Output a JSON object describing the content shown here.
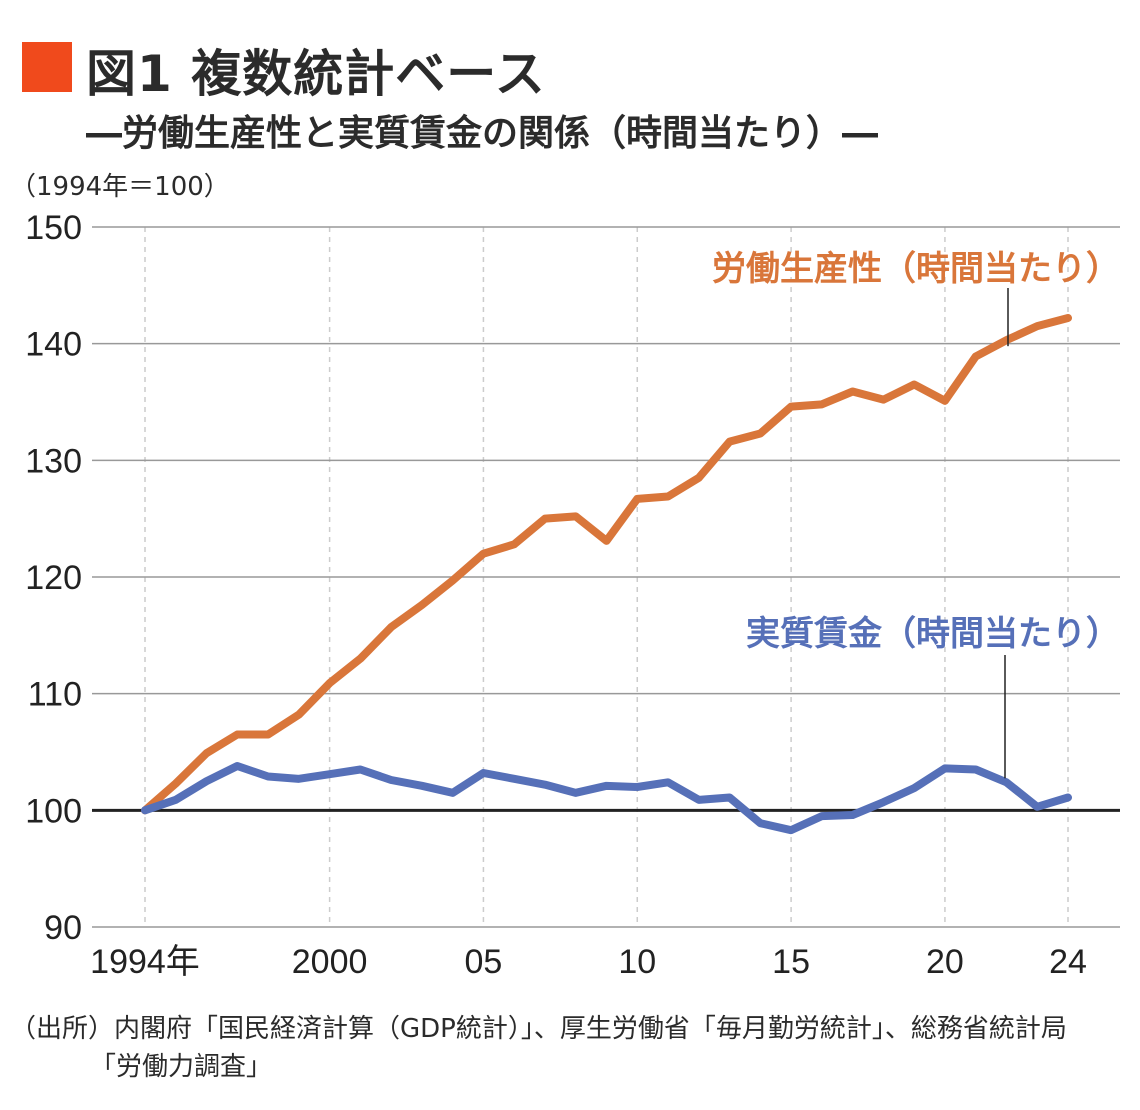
{
  "header": {
    "title": "図1 複数統計ベース",
    "subtitle": "―労働生産性と実質賃金の関係（時間当たり）―",
    "unit": "（1994年＝100）",
    "accent_color": "#f04a1c"
  },
  "source": {
    "line1": "（出所）内閣府「国民経済計算（GDP統計）」、厚生労働省「毎月勤労統計」、総務省統計局",
    "line2": "「労働力調査」"
  },
  "chart_data": {
    "type": "line",
    "title": "図1 複数統計ベース",
    "ylabel": "（1994年＝100）",
    "ylim": [
      90,
      150
    ],
    "yticks": [
      90,
      100,
      110,
      120,
      130,
      140,
      150
    ],
    "xlim": [
      1994,
      2024
    ],
    "xtick_values": [
      1994,
      2000,
      2005,
      2010,
      2015,
      2020,
      2024
    ],
    "xtick_labels": [
      "1994年",
      "2000",
      "05",
      "10",
      "15",
      "20",
      "24"
    ],
    "grid": true,
    "baseline": 100,
    "x": [
      1994,
      1995,
      1996,
      1997,
      1998,
      1999,
      2000,
      2001,
      2002,
      2003,
      2004,
      2005,
      2006,
      2007,
      2008,
      2009,
      2010,
      2011,
      2012,
      2013,
      2014,
      2015,
      2016,
      2017,
      2018,
      2019,
      2020,
      2021,
      2022,
      2023,
      2024
    ],
    "series": [
      {
        "name": "労働生産性（時間当たり）",
        "color": "#d9763a",
        "values": [
          100,
          102.3,
          104.9,
          106.5,
          106.5,
          108.2,
          110.9,
          113.0,
          115.7,
          117.6,
          119.7,
          122.0,
          122.8,
          125.0,
          125.2,
          123.1,
          126.7,
          126.9,
          128.5,
          131.6,
          132.3,
          134.6,
          134.8,
          135.9,
          135.2,
          136.5,
          135.1,
          138.9,
          140.3,
          141.5,
          142.2
        ]
      },
      {
        "name": "実質賃金（時間当たり）",
        "color": "#5670b8",
        "values": [
          100,
          100.9,
          102.5,
          103.8,
          102.9,
          102.7,
          103.1,
          103.5,
          102.6,
          102.1,
          101.5,
          103.2,
          102.7,
          102.2,
          101.5,
          102.1,
          102.0,
          102.4,
          100.9,
          101.1,
          98.9,
          98.3,
          99.5,
          99.6,
          100.7,
          101.9,
          103.6,
          103.5,
          102.4,
          100.3,
          101.1
        ]
      }
    ]
  }
}
